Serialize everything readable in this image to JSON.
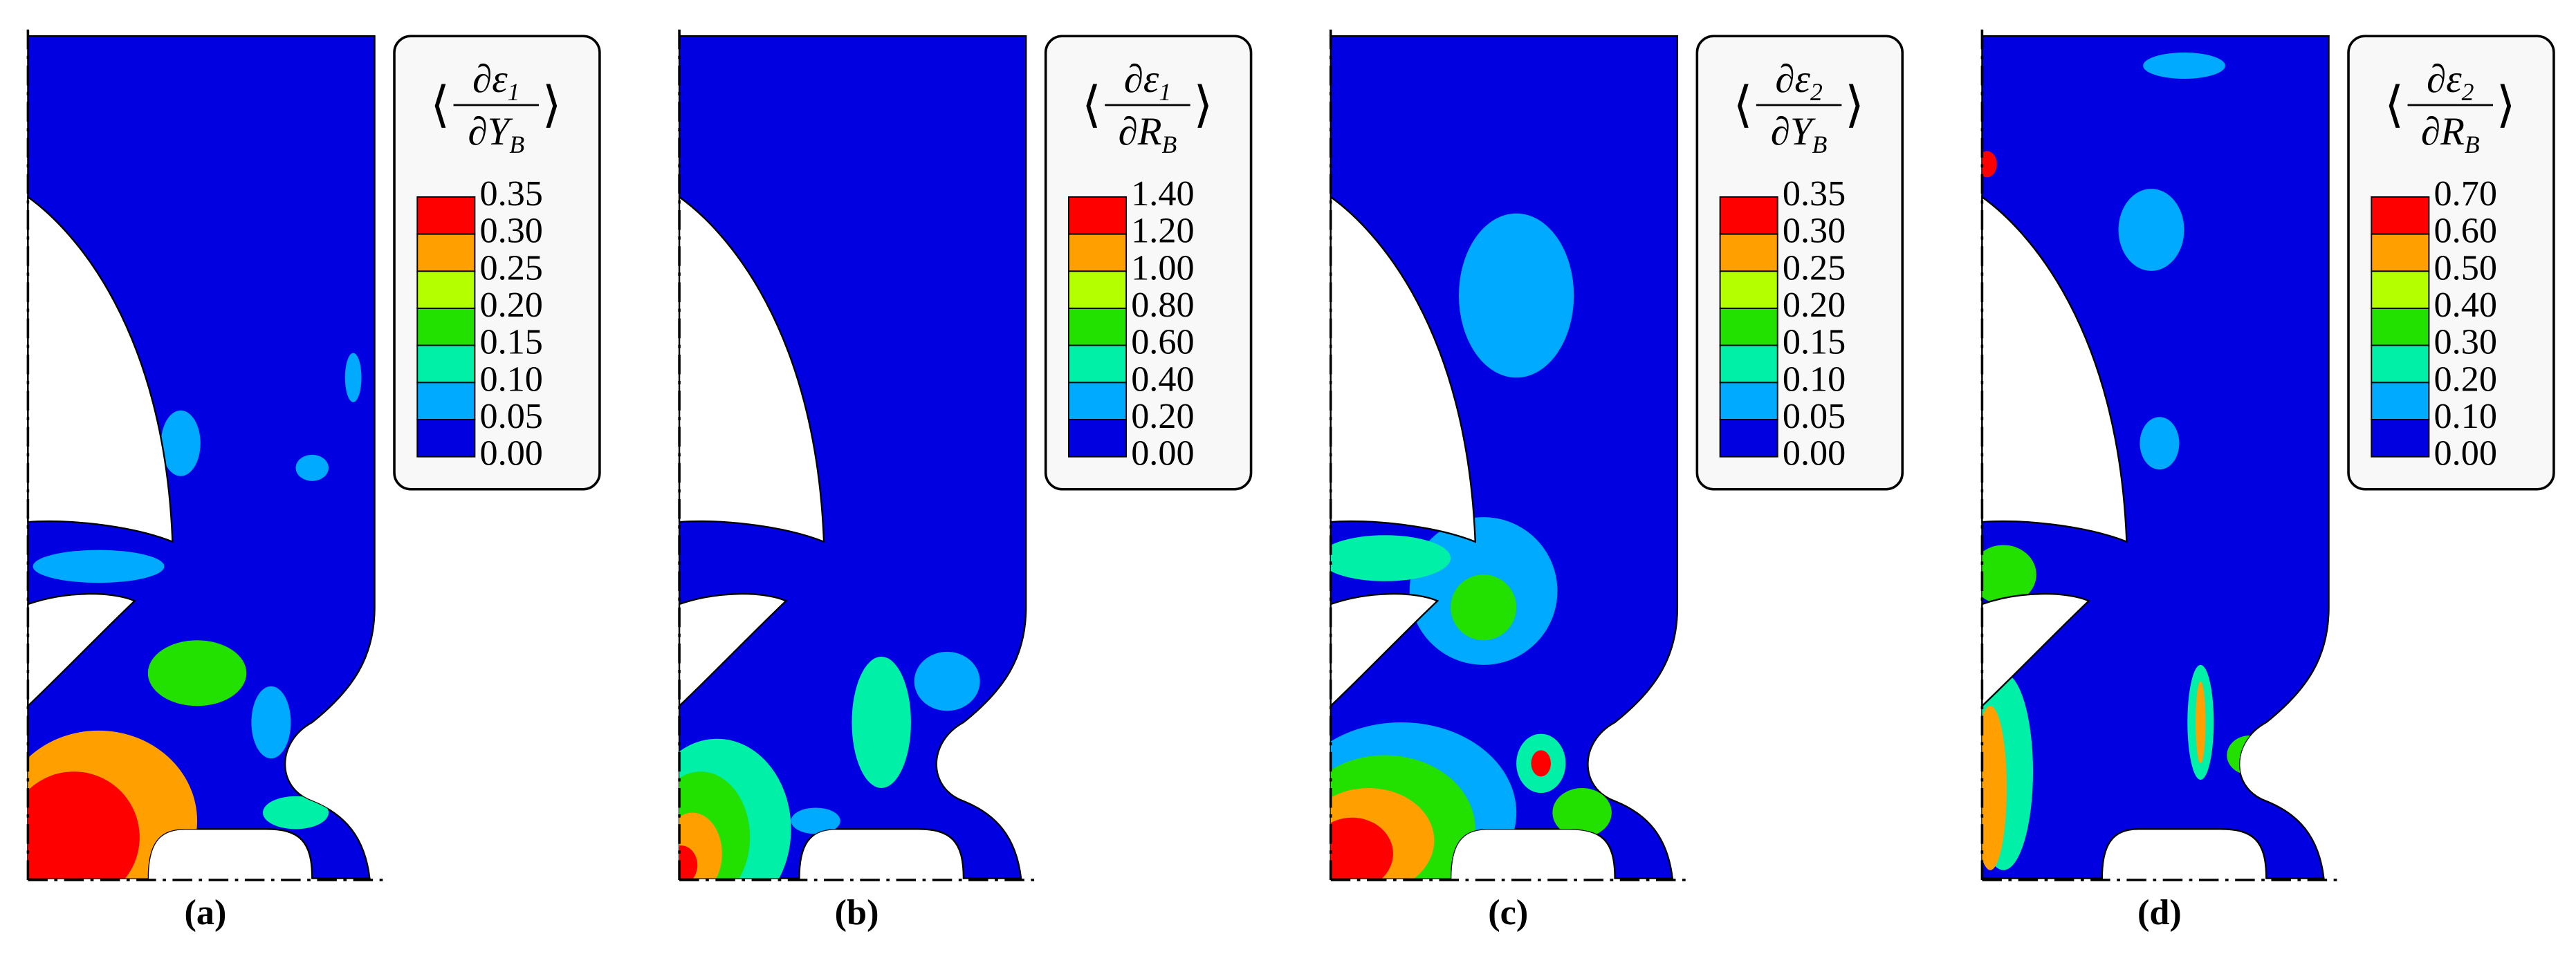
{
  "panels": [
    {
      "label": "(a)",
      "legend": {
        "numerator": {
          "base": "∂ε",
          "sub": "1"
        },
        "denominator": {
          "base": "∂Y",
          "sub": "B"
        },
        "ticks": [
          "0.35",
          "0.30",
          "0.25",
          "0.20",
          "0.15",
          "0.10",
          "0.05",
          "0.00"
        ]
      }
    },
    {
      "label": "(b)",
      "legend": {
        "numerator": {
          "base": "∂ε",
          "sub": "1"
        },
        "denominator": {
          "base": "∂R",
          "sub": "B"
        },
        "ticks": [
          "1.40",
          "1.20",
          "1.00",
          "0.80",
          "0.60",
          "0.40",
          "0.20",
          "0.00"
        ]
      }
    },
    {
      "label": "(c)",
      "legend": {
        "numerator": {
          "base": "∂ε",
          "sub": "2"
        },
        "denominator": {
          "base": "∂Y",
          "sub": "B"
        },
        "ticks": [
          "0.35",
          "0.30",
          "0.25",
          "0.20",
          "0.15",
          "0.10",
          "0.05",
          "0.00"
        ]
      }
    },
    {
      "label": "(d)",
      "legend": {
        "numerator": {
          "base": "∂ε",
          "sub": "2"
        },
        "denominator": {
          "base": "∂R",
          "sub": "B"
        },
        "ticks": [
          "0.70",
          "0.60",
          "0.50",
          "0.40",
          "0.30",
          "0.20",
          "0.10",
          "0.00"
        ]
      }
    }
  ],
  "colors": [
    "#ff0000",
    "#ffa000",
    "#b4ff00",
    "#22e000",
    "#00f0a8",
    "#00aaff",
    "#0000e0"
  ]
}
